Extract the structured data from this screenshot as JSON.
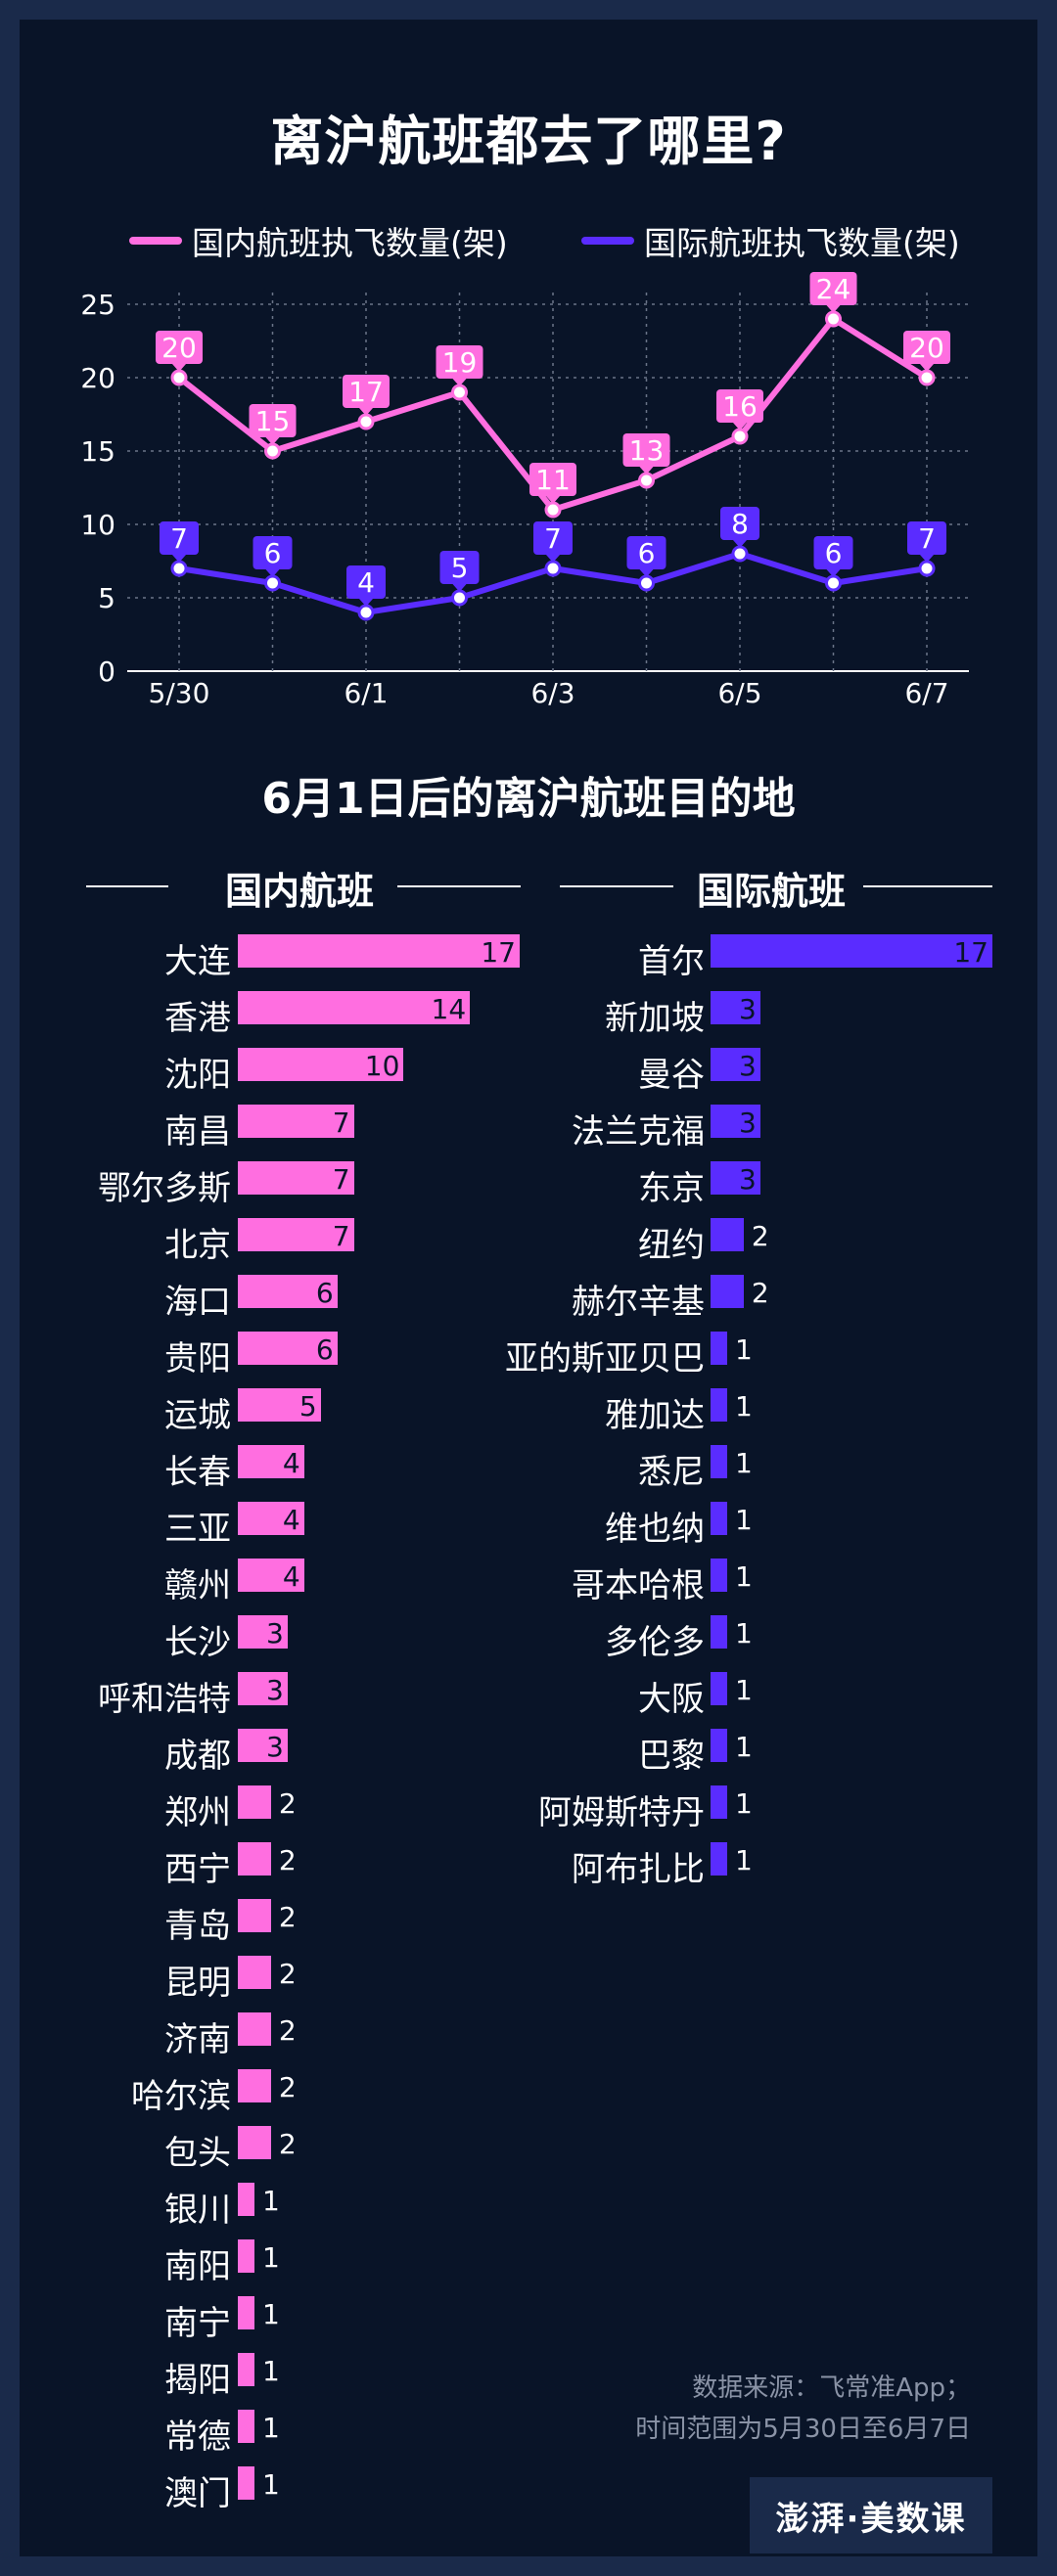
{
  "title": "离沪航班都去了哪里?",
  "subtitle": "6月1日后的离沪航班目的地",
  "colors": {
    "domestic": "#ff6ee0",
    "international": "#5a2cff",
    "background": "#091428",
    "frame": "#1a2a4a"
  },
  "chart_data": [
    {
      "type": "line",
      "x": [
        "5/30",
        "5/31",
        "6/1",
        "6/2",
        "6/3",
        "6/4",
        "6/5",
        "6/6",
        "6/7"
      ],
      "x_tick_labels": [
        "5/30",
        "6/1",
        "6/3",
        "6/5",
        "6/7"
      ],
      "y_ticks": [
        "0",
        "5",
        "10",
        "15",
        "20",
        "25"
      ],
      "ylim": [
        0,
        25
      ],
      "grid": true,
      "legend_position": "top",
      "series": [
        {
          "name": "国内航班执飞数量(架)",
          "values": [
            20,
            15,
            17,
            19,
            11,
            13,
            16,
            24,
            20
          ]
        },
        {
          "name": "国际航班执飞数量(架)",
          "values": [
            7,
            6,
            4,
            5,
            7,
            6,
            8,
            6,
            7
          ]
        }
      ]
    },
    {
      "type": "bar",
      "title": "国内航班",
      "orientation": "horizontal",
      "categories": [
        "大连",
        "香港",
        "沈阳",
        "南昌",
        "鄂尔多斯",
        "北京",
        "海口",
        "贵阳",
        "运城",
        "长春",
        "三亚",
        "赣州",
        "长沙",
        "呼和浩特",
        "成都",
        "郑州",
        "西宁",
        "青岛",
        "昆明",
        "济南",
        "哈尔滨",
        "包头",
        "银川",
        "南阳",
        "南宁",
        "揭阳",
        "常德",
        "澳门"
      ],
      "values": [
        17,
        14,
        10,
        7,
        7,
        7,
        6,
        6,
        5,
        4,
        4,
        4,
        3,
        3,
        3,
        2,
        2,
        2,
        2,
        2,
        2,
        2,
        1,
        1,
        1,
        1,
        1,
        1
      ]
    },
    {
      "type": "bar",
      "title": "国际航班",
      "orientation": "horizontal",
      "categories": [
        "首尔",
        "新加坡",
        "曼谷",
        "法兰克福",
        "东京",
        "纽约",
        "赫尔辛基",
        "亚的斯亚贝巴",
        "雅加达",
        "悉尼",
        "维也纳",
        "哥本哈根",
        "多伦多",
        "大阪",
        "巴黎",
        "阿姆斯特丹",
        "阿布扎比"
      ],
      "values": [
        17,
        3,
        3,
        3,
        3,
        2,
        2,
        1,
        1,
        1,
        1,
        1,
        1,
        1,
        1,
        1,
        1
      ]
    }
  ],
  "source": {
    "line1": "数据来源：飞常准App；",
    "line2": "时间范围为5月30日至6月7日"
  },
  "logo": {
    "text": "澎湃·美数课"
  }
}
